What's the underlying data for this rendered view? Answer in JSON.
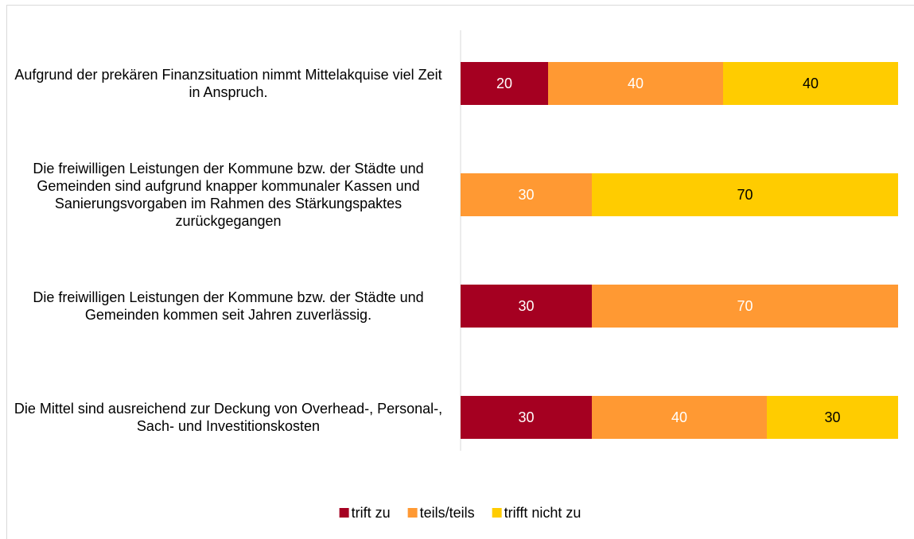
{
  "chart_data": {
    "type": "stacked-bar-horizontal",
    "categories": [
      "Aufgrund der prekären Finanzsituation nimmt Mittelakquise viel Zeit in Anspruch.",
      "Die freiwilligen Leistungen der Kommune bzw. der Städte und Gemeinden sind aufgrund knapper kommunaler Kassen und Sanierungsvorgaben im Rahmen des Stärkungspaktes zurückgegangen",
      "Die freiwilligen Leistungen der Kommune bzw. der Städte und Gemeinden kommen seit Jahren zuverlässig.",
      "Die Mittel sind ausreichend zur Deckung von Overhead-, Personal-, Sach- und Investitionskosten"
    ],
    "series": [
      {
        "name": "trift zu",
        "color": "#a50021",
        "label_color": "#ffffff",
        "values": [
          20,
          null,
          30,
          30
        ]
      },
      {
        "name": "teils/teils",
        "color": "#ff9933",
        "label_color": "#ffffff",
        "values": [
          40,
          30,
          70,
          40
        ]
      },
      {
        "name": "trifft nicht zu",
        "color": "#ffcc00",
        "label_color": "#000000",
        "values": [
          40,
          70,
          null,
          30
        ]
      }
    ],
    "xlim": [
      0,
      100
    ],
    "legend": "bottom"
  }
}
